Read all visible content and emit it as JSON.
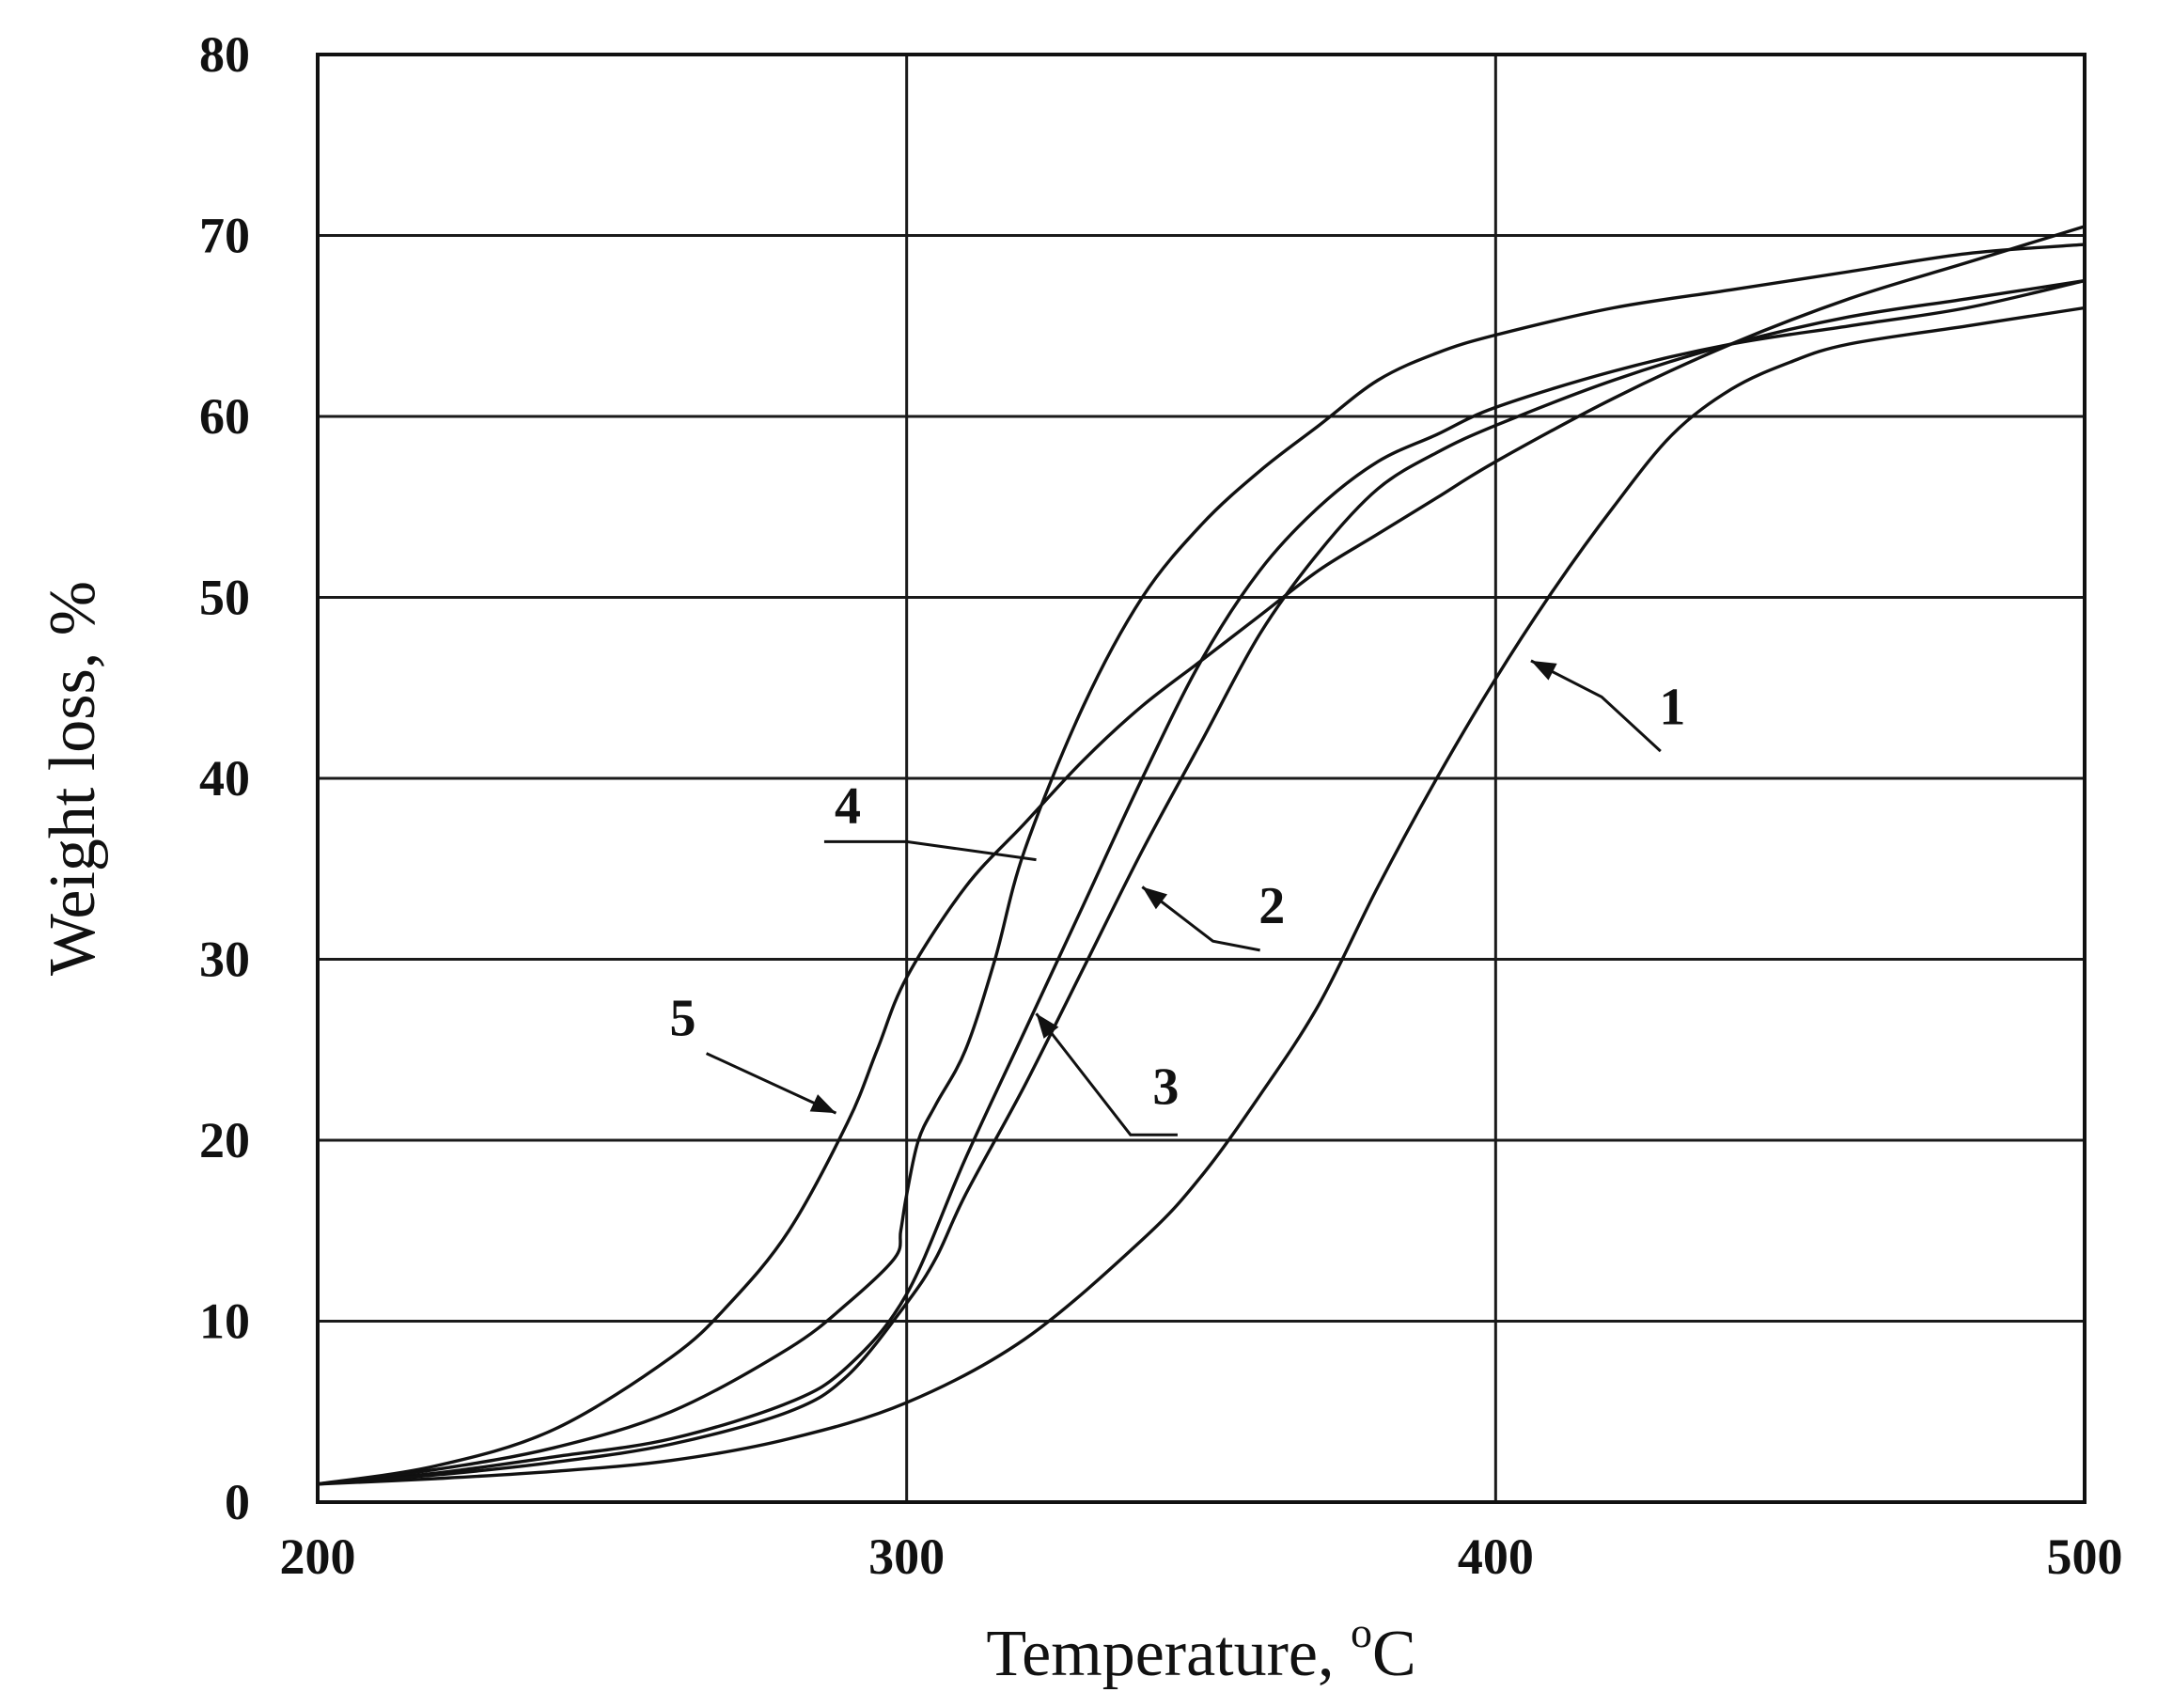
{
  "chart_data": {
    "type": "line",
    "title": "",
    "xlabel": "Temperature, ",
    "xlabel_unit_superscript": "o",
    "xlabel_unit": "C",
    "ylabel": "Weight loss, %",
    "xlim": [
      200,
      500
    ],
    "ylim": [
      0,
      80
    ],
    "xticks": [
      200,
      300,
      400,
      500
    ],
    "yticks": [
      0,
      10,
      20,
      30,
      40,
      50,
      60,
      70,
      80
    ],
    "grid": true,
    "legend": "inline numbered labels with leader arrows",
    "series": [
      {
        "name": "1",
        "x": [
          200,
          220,
          240,
          260,
          280,
          300,
          320,
          340,
          350,
          360,
          370,
          380,
          390,
          400,
          410,
          420,
          430,
          440,
          450,
          460,
          480,
          500
        ],
        "y": [
          1,
          1.3,
          1.7,
          2.3,
          3.5,
          5.5,
          9,
          14.5,
          18,
          22.5,
          27.5,
          34,
          40,
          45.5,
          50.5,
          55,
          59,
          61.5,
          63,
          64,
          65,
          66
        ]
      },
      {
        "name": "2",
        "x": [
          200,
          220,
          240,
          260,
          280,
          290,
          300,
          310,
          320,
          330,
          340,
          350,
          360,
          370,
          380,
          390,
          400,
          420,
          440,
          460,
          480,
          500
        ],
        "y": [
          1,
          1.6,
          2.5,
          3.5,
          5.5,
          7.5,
          11.5,
          19,
          26,
          33,
          40,
          46.5,
          51.5,
          55,
          57.5,
          59,
          60.5,
          62.5,
          64,
          65,
          66,
          67.5
        ]
      },
      {
        "name": "3",
        "x": [
          200,
          220,
          240,
          260,
          280,
          290,
          300,
          305,
          310,
          320,
          330,
          340,
          350,
          360,
          370,
          380,
          390,
          400,
          420,
          440,
          460,
          480,
          500
        ],
        "y": [
          1,
          1.5,
          2.2,
          3.2,
          5,
          7,
          11,
          13.5,
          17,
          23,
          29.5,
          36,
          42,
          48,
          52.5,
          56,
          58,
          59.5,
          62,
          64,
          65.5,
          66.5,
          67.5
        ]
      },
      {
        "name": "4",
        "x": [
          200,
          220,
          240,
          260,
          280,
          290,
          298,
          299,
          300,
          302,
          305,
          310,
          315,
          320,
          330,
          340,
          350,
          360,
          370,
          380,
          390,
          400,
          420,
          440,
          460,
          480,
          500
        ],
        "y": [
          1,
          1.8,
          3,
          5,
          8.5,
          11,
          13.5,
          15,
          17,
          20,
          22,
          25,
          30,
          36,
          44,
          50,
          54,
          57,
          59.5,
          62,
          63.5,
          64.5,
          66,
          67,
          68,
          69,
          69.5
        ]
      },
      {
        "name": "5",
        "x": [
          200,
          220,
          240,
          260,
          270,
          280,
          290,
          295,
          300,
          310,
          320,
          330,
          340,
          350,
          360,
          370,
          380,
          390,
          400,
          420,
          440,
          460,
          480,
          500
        ],
        "y": [
          1,
          2,
          4,
          8,
          11,
          15,
          21,
          25,
          29,
          34,
          37.5,
          41,
          44,
          46.5,
          49,
          51.5,
          53.5,
          55.5,
          57.5,
          61,
          64,
          66.5,
          68.5,
          70.5
        ]
      }
    ],
    "annotations": [
      {
        "text": "1",
        "series": "1"
      },
      {
        "text": "2",
        "series": "2"
      },
      {
        "text": "3",
        "series": "3"
      },
      {
        "text": "4",
        "series": "4"
      },
      {
        "text": "5",
        "series": "5"
      }
    ]
  }
}
